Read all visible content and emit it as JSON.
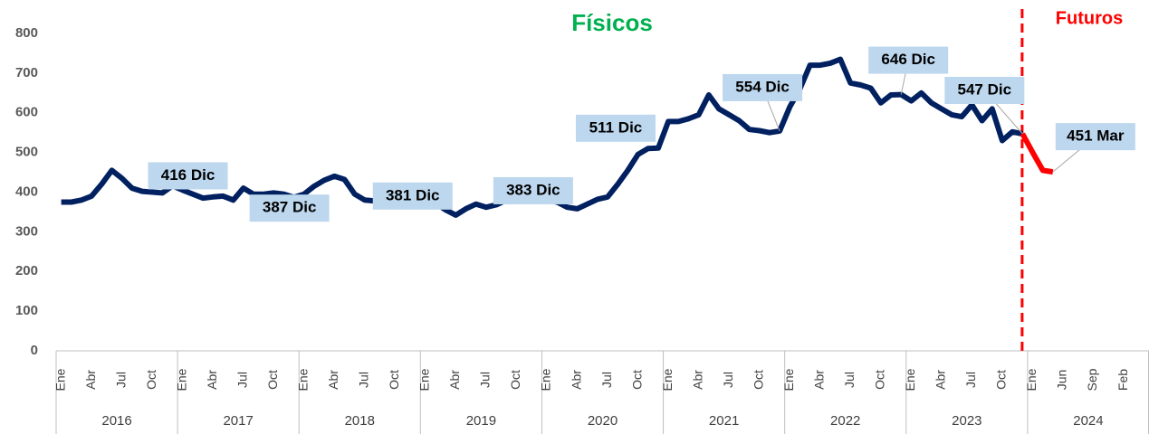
{
  "chart_data": {
    "type": "line",
    "title": "Físicos",
    "subtitle": "Futuros",
    "title_color": "#00b050",
    "subtitle_color": "#ff0000",
    "ylim": [
      0,
      800
    ],
    "yticks": [
      0,
      100,
      200,
      300,
      400,
      500,
      600,
      700,
      800
    ],
    "years": [
      "2016",
      "2017",
      "2018",
      "2019",
      "2020",
      "2021",
      "2022",
      "2023",
      "2024"
    ],
    "categories": [
      "Ene",
      null,
      null,
      "Abr",
      null,
      null,
      "Jul",
      null,
      null,
      "Oct",
      null,
      null,
      "Ene",
      null,
      null,
      "Abr",
      null,
      null,
      "Jul",
      null,
      null,
      "Oct",
      null,
      null,
      "Ene",
      null,
      null,
      "Abr",
      null,
      null,
      "Jul",
      null,
      null,
      "Oct",
      null,
      null,
      "Ene",
      null,
      null,
      "Abr",
      null,
      null,
      "Jul",
      null,
      null,
      "Oct",
      null,
      null,
      "Ene",
      null,
      null,
      "Abr",
      null,
      null,
      "Jul",
      null,
      null,
      "Oct",
      null,
      null,
      "Ene",
      null,
      null,
      "Abr",
      null,
      null,
      "Jul",
      null,
      null,
      "Oct",
      null,
      null,
      "Ene",
      null,
      null,
      "Abr",
      null,
      null,
      "Jul",
      null,
      null,
      "Oct",
      null,
      null,
      "Ene",
      null,
      null,
      "Abr",
      null,
      null,
      "Jul",
      null,
      null,
      "Oct",
      null,
      null,
      "Ene",
      null,
      null,
      "Jun",
      null,
      null,
      "Sep",
      null,
      null,
      "Feb",
      null,
      null
    ],
    "series": [
      {
        "name": "Físicos",
        "color": "#002060",
        "values": [
          375,
          375,
          380,
          390,
          420,
          455,
          435,
          410,
          402,
          400,
          398,
          416,
          405,
          395,
          385,
          388,
          390,
          380,
          410,
          395,
          395,
          398,
          395,
          387,
          395,
          415,
          430,
          440,
          432,
          395,
          380,
          378,
          370,
          375,
          380,
          381,
          375,
          372,
          355,
          342,
          358,
          370,
          362,
          368,
          380,
          378,
          385,
          383,
          380,
          375,
          362,
          358,
          370,
          382,
          388,
          420,
          455,
          495,
          510,
          511,
          578,
          578,
          585,
          595,
          645,
          610,
          595,
          580,
          558,
          555,
          550,
          554,
          615,
          660,
          720,
          720,
          725,
          735,
          675,
          670,
          662,
          625,
          645,
          646,
          630,
          650,
          625,
          610,
          595,
          590,
          620,
          580,
          610,
          530,
          552,
          547,
          null,
          null,
          null,
          null,
          null,
          null,
          null,
          null,
          null,
          null,
          null,
          null
        ],
        "value_labels": [
          null,
          null,
          null,
          null,
          null,
          null,
          null,
          null,
          null,
          null,
          null,
          "416 Dic",
          null,
          null,
          null,
          null,
          null,
          null,
          null,
          null,
          null,
          null,
          null,
          "387 Dic",
          null,
          null,
          null,
          null,
          null,
          null,
          null,
          null,
          null,
          null,
          null,
          "381 Dic",
          null,
          null,
          null,
          null,
          null,
          null,
          null,
          null,
          null,
          null,
          null,
          "383 Dic",
          null,
          null,
          null,
          null,
          null,
          null,
          null,
          null,
          null,
          null,
          null,
          "511 Dic",
          null,
          null,
          null,
          null,
          null,
          null,
          null,
          null,
          null,
          null,
          null,
          "554 Dic",
          null,
          null,
          null,
          null,
          null,
          null,
          null,
          null,
          null,
          null,
          null,
          "646 Dic",
          null,
          null,
          null,
          null,
          null,
          null,
          null,
          null,
          null,
          null,
          null,
          "547 Dic",
          null,
          null,
          null,
          null,
          null,
          null,
          null,
          null,
          null,
          null,
          null,
          null
        ]
      },
      {
        "name": "Futuros",
        "color": "#ff0000",
        "values": [
          null,
          null,
          null,
          null,
          null,
          null,
          null,
          null,
          null,
          null,
          null,
          null,
          null,
          null,
          null,
          null,
          null,
          null,
          null,
          null,
          null,
          null,
          null,
          null,
          null,
          null,
          null,
          null,
          null,
          null,
          null,
          null,
          null,
          null,
          null,
          null,
          null,
          null,
          null,
          null,
          null,
          null,
          null,
          null,
          null,
          null,
          null,
          null,
          null,
          null,
          null,
          null,
          null,
          null,
          null,
          null,
          null,
          null,
          null,
          null,
          null,
          null,
          null,
          null,
          null,
          null,
          null,
          null,
          null,
          null,
          null,
          null,
          null,
          null,
          null,
          null,
          null,
          null,
          null,
          null,
          null,
          null,
          null,
          null,
          null,
          null,
          null,
          null,
          null,
          null,
          null,
          null,
          null,
          null,
          null,
          547,
          500,
          455,
          451,
          null,
          null,
          null,
          null,
          null,
          null,
          null,
          null,
          null
        ],
        "value_labels": [
          null,
          null,
          null,
          null,
          null,
          null,
          null,
          null,
          null,
          null,
          null,
          null,
          null,
          null,
          null,
          null,
          null,
          null,
          null,
          null,
          null,
          null,
          null,
          null,
          null,
          null,
          null,
          null,
          null,
          null,
          null,
          null,
          null,
          null,
          null,
          null,
          null,
          null,
          null,
          null,
          null,
          null,
          null,
          null,
          null,
          null,
          null,
          null,
          null,
          null,
          null,
          null,
          null,
          null,
          null,
          null,
          null,
          null,
          null,
          null,
          null,
          null,
          null,
          null,
          null,
          null,
          null,
          null,
          null,
          null,
          null,
          null,
          null,
          null,
          null,
          null,
          null,
          null,
          null,
          null,
          null,
          null,
          null,
          null,
          null,
          null,
          null,
          null,
          null,
          null,
          null,
          null,
          null,
          null,
          null,
          null,
          null,
          null,
          "451 Mar",
          null,
          null,
          null,
          null,
          null,
          null,
          null,
          null,
          null
        ]
      }
    ]
  }
}
